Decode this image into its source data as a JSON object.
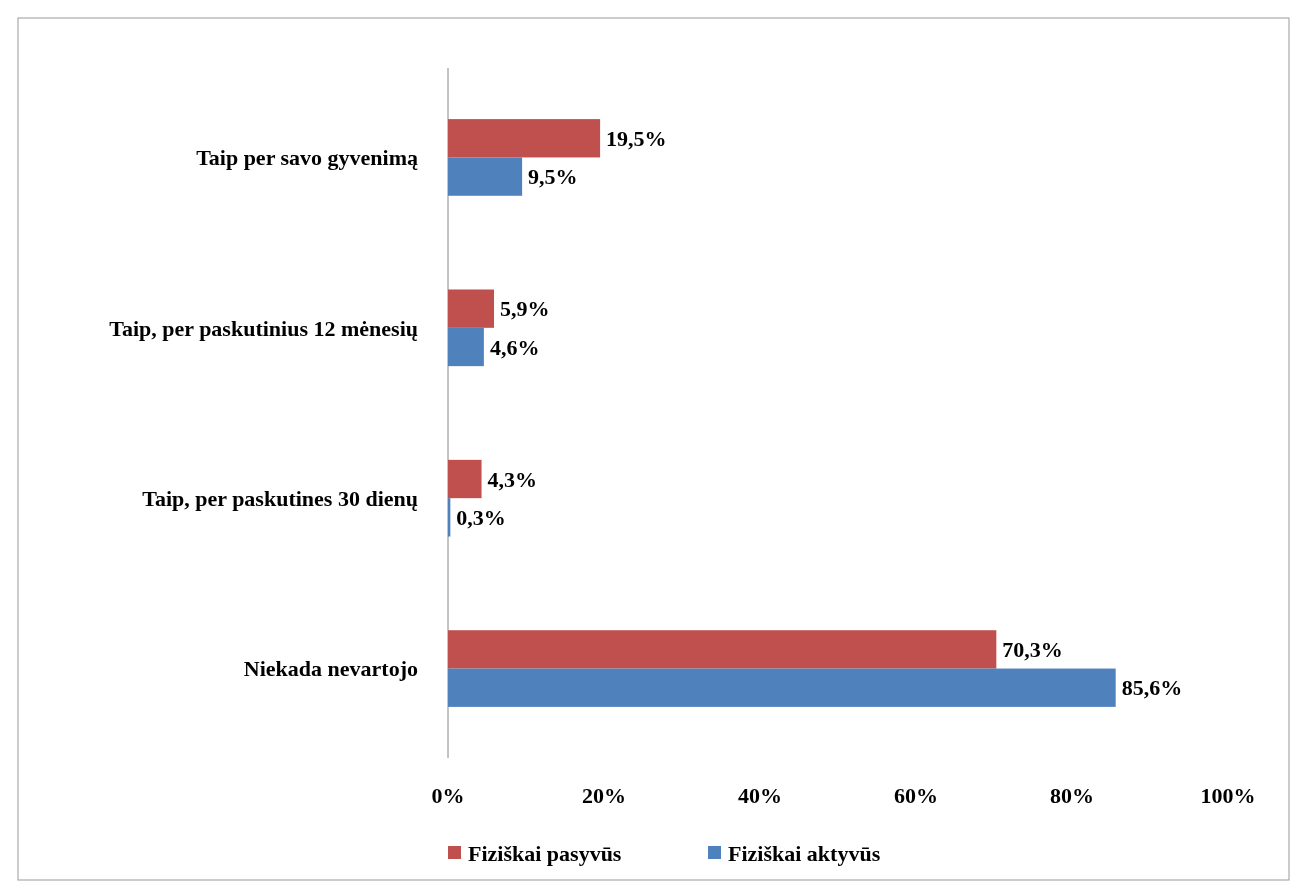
{
  "chart_data": {
    "type": "bar",
    "orientation": "horizontal",
    "categories": [
      "Taip per savo gyvenimą",
      "Taip, per paskutinius 12 mėnesių",
      "Taip, per paskutines 30 dienų",
      "Niekada nevartojo"
    ],
    "series": [
      {
        "name": "Fiziškai pasyvūs",
        "color": "#c0504d",
        "values": [
          19.5,
          5.9,
          4.3,
          70.3
        ],
        "value_labels": [
          "19,5%",
          "5,9%",
          "4,3%",
          "70,3%"
        ]
      },
      {
        "name": "Fiziškai aktyvūs",
        "color": "#4f81bd",
        "values": [
          9.5,
          4.6,
          0.3,
          85.6
        ],
        "value_labels": [
          "9,5%",
          "4,6%",
          "0,3%",
          "85,6%"
        ]
      }
    ],
    "xlim": [
      0,
      100
    ],
    "xticks": [
      {
        "value": 0,
        "label": "0%"
      },
      {
        "value": 20,
        "label": "20%"
      },
      {
        "value": 40,
        "label": "40%"
      },
      {
        "value": 60,
        "label": "60%"
      },
      {
        "value": 80,
        "label": "80%"
      },
      {
        "value": 100,
        "label": "100%"
      }
    ],
    "grid": false,
    "legend": "bottom"
  }
}
